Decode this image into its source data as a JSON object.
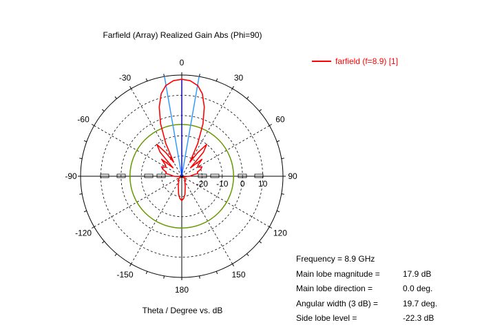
{
  "title": "Farfield (Array) Realized Gain Abs (Phi=90)",
  "xlabel": "Theta / Degree vs. dB",
  "legend": {
    "label": "farfield (f=8.9) [1]",
    "color": "#ff0000"
  },
  "stats": [
    {
      "label": "Frequency = 8.9 GHz",
      "value": ""
    },
    {
      "label": "Main lobe magnitude =",
      "value": "17.9 dB"
    },
    {
      "label": "Main lobe direction =",
      "value": "0.0 deg."
    },
    {
      "label": "Angular width (3 dB) =",
      "value": "19.7 deg."
    },
    {
      "label": "Side lobe level =",
      "value": "-22.3 dB"
    }
  ],
  "colors": {
    "trace": "#ff0000",
    "main_lobe": "#0000ff",
    "beamwidth": "#3399ff",
    "threshold": "#669900"
  },
  "chart_data": {
    "type": "polar",
    "title": "Farfield (Array) Realized Gain Abs (Phi=90)",
    "xlabel": "Theta / Degree vs. dB",
    "angle_ticks": [
      {
        "angle": 0,
        "label": "0"
      },
      {
        "angle": 30,
        "label": "-30"
      },
      {
        "angle": 60,
        "label": "-60"
      },
      {
        "angle": 90,
        "label": "-90"
      },
      {
        "angle": 120,
        "label": "-120"
      },
      {
        "angle": 150,
        "label": "-150"
      },
      {
        "angle": 180,
        "label": "180"
      },
      {
        "angle": -150,
        "label": "150"
      },
      {
        "angle": -120,
        "label": "120"
      },
      {
        "angle": -90,
        "label": "90"
      },
      {
        "angle": -60,
        "label": "60"
      },
      {
        "angle": -30,
        "label": "30"
      }
    ],
    "radial_ticks": [
      {
        "value": -20,
        "label": "-20"
      },
      {
        "value": -10,
        "label": "-10"
      },
      {
        "value": 0,
        "label": "0"
      },
      {
        "value": 10,
        "label": "10"
      }
    ],
    "r_range": [
      -30,
      20
    ],
    "main_lobe_direction": 0,
    "beamwidth_lines": [
      -9.85,
      9.85
    ],
    "threshold_circle": -4.4,
    "series": [
      {
        "name": "farfield (f=8.9) [1]",
        "angles": [
          0,
          5,
          10,
          14,
          18,
          22,
          26,
          30,
          34,
          38,
          42,
          46,
          50,
          55,
          60,
          65,
          70,
          75,
          80,
          85,
          90,
          95,
          100,
          110,
          120,
          130,
          140,
          150,
          160,
          170,
          175,
          180,
          -175,
          -170,
          -160,
          -150,
          -140,
          -130,
          -120,
          -110,
          -100,
          -95,
          -90,
          -85,
          -80,
          -75,
          -70,
          -65,
          -60,
          -55,
          -50,
          -46,
          -42,
          -38,
          -34,
          -30,
          -26,
          -22,
          -18,
          -14,
          -10,
          -5
        ],
        "values": [
          17.9,
          17.4,
          15.5,
          12,
          6,
          -2,
          -12,
          -22,
          -16,
          -10,
          -14,
          -24,
          -17,
          -20,
          -21,
          -19,
          -20,
          -22,
          -22,
          -25,
          -26,
          -28,
          -29,
          -29,
          -29,
          -28,
          -27,
          -27,
          -25,
          -21,
          -19,
          -18,
          -19,
          -21,
          -25,
          -27,
          -27,
          -28,
          -29,
          -29,
          -28,
          -28,
          -26,
          -25,
          -22,
          -22,
          -20,
          -19,
          -21,
          -20,
          -17,
          -24,
          -14,
          -10,
          -16,
          -22,
          -12,
          -2,
          6,
          12,
          15.5,
          17.4
        ]
      }
    ]
  }
}
